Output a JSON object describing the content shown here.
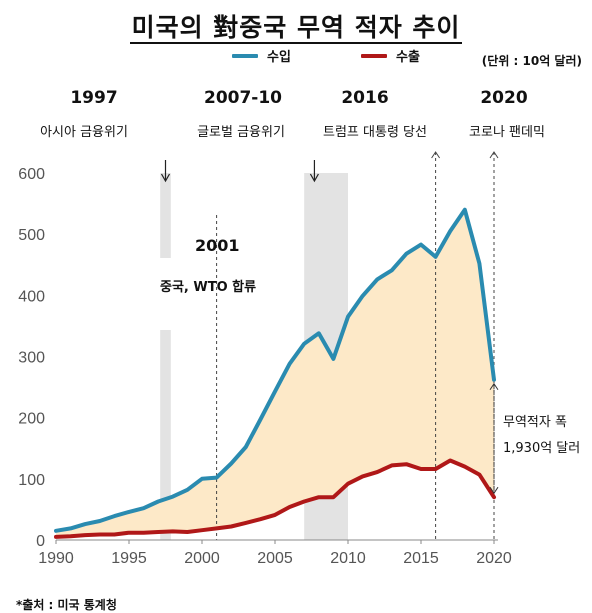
{
  "title": "미국의 對중국 무역 적자 추이",
  "unit_note": "(단위 : 10억 달러)",
  "source": "*출처 :  미국 통계청",
  "events": [
    {
      "year": "1997",
      "label": "아시아 금융위기"
    },
    {
      "year": "2007-10",
      "label": "글로벌 금융위기"
    },
    {
      "year": "2016",
      "label": "트럼프 대통령 당선"
    },
    {
      "year": "2020",
      "label": "코로나 팬데믹"
    }
  ],
  "annotation_2001": {
    "year": "2001",
    "label": "중국, WTO 합류"
  },
  "gap_annotation": {
    "line1": "무역적자 폭",
    "line2": "1,930억 달러"
  },
  "chart_data": {
    "type": "area",
    "title": "미국의 對중국 무역 적자 추이",
    "xlabel": "",
    "ylabel": "",
    "x": [
      1990,
      1991,
      1992,
      1993,
      1994,
      1995,
      1996,
      1997,
      1998,
      1999,
      2000,
      2001,
      2002,
      2003,
      2004,
      2005,
      2006,
      2007,
      2008,
      2009,
      2010,
      2011,
      2012,
      2013,
      2014,
      2015,
      2016,
      2017,
      2018,
      2019,
      2020
    ],
    "series": [
      {
        "name": "수입",
        "color": "#2a8bb0",
        "values": [
          15,
          19,
          26,
          31,
          39,
          46,
          52,
          63,
          71,
          82,
          100,
          102,
          125,
          152,
          197,
          243,
          288,
          321,
          338,
          296,
          365,
          399,
          426,
          441,
          468,
          483,
          463,
          505,
          540,
          452,
          262
        ]
      },
      {
        "name": "수출",
        "color": "#b01818",
        "values": [
          5,
          6,
          8,
          9,
          9,
          12,
          12,
          13,
          14,
          13,
          16,
          19,
          22,
          28,
          34,
          41,
          54,
          63,
          70,
          70,
          92,
          104,
          111,
          122,
          124,
          116,
          116,
          130,
          120,
          107,
          70
        ]
      }
    ],
    "xlim": [
      1990,
      2020
    ],
    "ylim": [
      0,
      600
    ],
    "x_ticks": [
      1990,
      1995,
      2000,
      2005,
      2010,
      2015,
      2020
    ],
    "y_ticks": [
      0,
      100,
      200,
      300,
      400,
      500,
      600
    ],
    "fill_between_color": "#fde9c8",
    "shaded_periods": [
      [
        1997,
        1998
      ],
      [
        2007,
        2010
      ]
    ],
    "event_lines": [
      2001,
      2016,
      2020
    ],
    "grid": false,
    "legend_position": "top"
  }
}
